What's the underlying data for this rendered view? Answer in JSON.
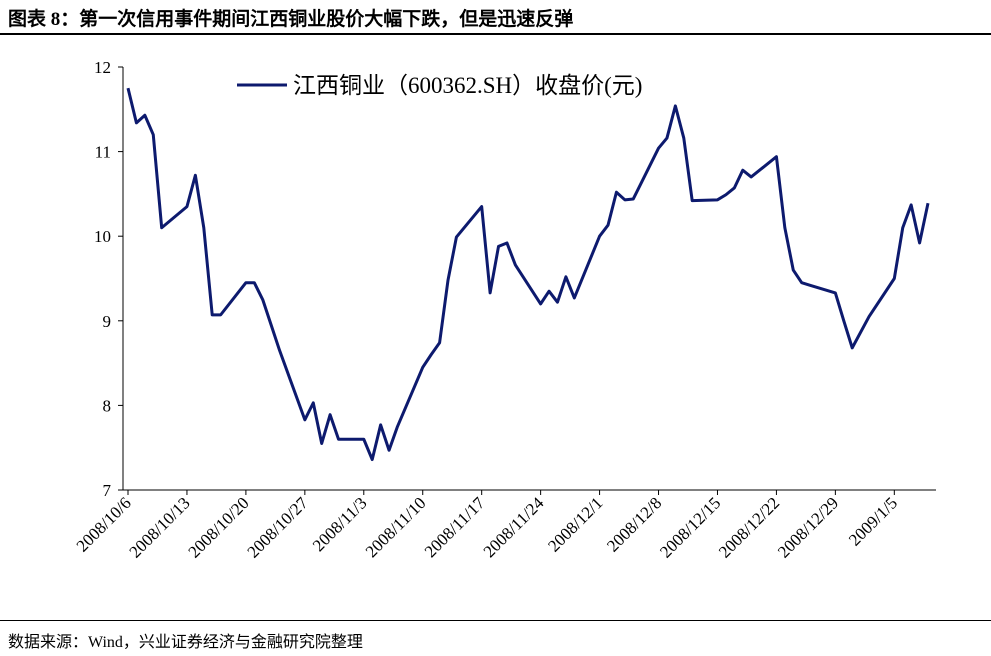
{
  "header": {
    "title": "图表 8：第一次信用事件期间江西铜业股价大幅下跌，但是迅速反弹"
  },
  "footer": {
    "source": "数据来源：Wind，兴业证券经济与金融研究院整理"
  },
  "chart_data": {
    "type": "line",
    "x": [
      "2008/10/6",
      "2008/10/7",
      "2008/10/8",
      "2008/10/9",
      "2008/10/10",
      "2008/10/13",
      "2008/10/14",
      "2008/10/15",
      "2008/10/16",
      "2008/10/17",
      "2008/10/20",
      "2008/10/21",
      "2008/10/22",
      "2008/10/23",
      "2008/10/24",
      "2008/10/27",
      "2008/10/28",
      "2008/10/29",
      "2008/10/30",
      "2008/10/31",
      "2008/11/3",
      "2008/11/4",
      "2008/11/5",
      "2008/11/6",
      "2008/11/7",
      "2008/11/10",
      "2008/11/11",
      "2008/11/12",
      "2008/11/13",
      "2008/11/14",
      "2008/11/17",
      "2008/11/18",
      "2008/11/19",
      "2008/11/20",
      "2008/11/21",
      "2008/11/24",
      "2008/11/25",
      "2008/11/26",
      "2008/11/27",
      "2008/11/28",
      "2008/12/1",
      "2008/12/2",
      "2008/12/3",
      "2008/12/4",
      "2008/12/5",
      "2008/12/8",
      "2008/12/9",
      "2008/12/10",
      "2008/12/11",
      "2008/12/12",
      "2008/12/15",
      "2008/12/16",
      "2008/12/17",
      "2008/12/18",
      "2008/12/19",
      "2008/12/22",
      "2008/12/23",
      "2008/12/24",
      "2008/12/25",
      "2008/12/26",
      "2008/12/29",
      "2008/12/30",
      "2008/12/31",
      "2009/1/2",
      "2009/1/5",
      "2009/1/6",
      "2009/1/7",
      "2009/1/8",
      "2009/1/9"
    ],
    "series": [
      {
        "name": "江西铜业（600362.SH）收盘价(元)",
        "color": "#0d1a6e",
        "values": [
          11.75,
          11.34,
          11.43,
          11.2,
          10.1,
          10.35,
          10.72,
          10.1,
          9.07,
          9.07,
          9.45,
          9.45,
          9.25,
          8.95,
          8.65,
          7.83,
          8.03,
          7.55,
          7.89,
          7.6,
          7.6,
          7.36,
          7.77,
          7.47,
          7.75,
          8.45,
          8.6,
          8.74,
          9.48,
          9.99,
          10.35,
          9.33,
          9.88,
          9.92,
          9.66,
          9.2,
          9.35,
          9.22,
          9.52,
          9.27,
          10.0,
          10.13,
          10.52,
          10.43,
          10.44,
          11.04,
          11.16,
          11.54,
          11.16,
          10.42,
          10.43,
          10.49,
          10.57,
          10.78,
          10.7,
          10.94,
          10.1,
          9.6,
          9.45,
          9.42,
          9.33,
          9.0,
          8.68,
          9.05,
          9.5,
          10.1,
          10.37,
          9.92,
          10.39
        ]
      }
    ],
    "xlim": [
      "2008/10/6",
      "2009/1/9"
    ],
    "xticks": [
      "2008/10/6",
      "2008/10/13",
      "2008/10/20",
      "2008/10/27",
      "2008/11/3",
      "2008/11/10",
      "2008/11/17",
      "2008/11/24",
      "2008/12/1",
      "2008/12/8",
      "2008/12/15",
      "2008/12/22",
      "2008/12/29",
      "2009/1/5"
    ],
    "ylim": [
      7,
      12
    ],
    "yticks": [
      7,
      8,
      9,
      10,
      11,
      12
    ],
    "grid": false,
    "legend": "top"
  }
}
